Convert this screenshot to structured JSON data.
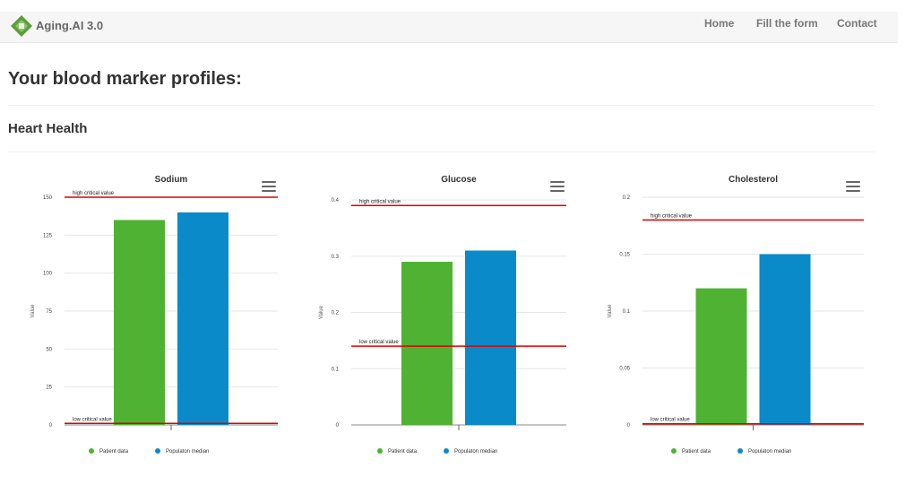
{
  "nav": {
    "brand": "Aging.AI 3.0",
    "logo_text": "AGING.AI",
    "links": [
      "Home",
      "Fill the form",
      "Contact"
    ]
  },
  "page": {
    "title": "Your blood marker profiles:",
    "section_title": "Heart Health"
  },
  "colors": {
    "patient": "#4fb233",
    "population": "#0a8ac8",
    "critical": "#e00000"
  },
  "chart_data": [
    {
      "type": "bar",
      "title": "Sodium",
      "ylabel": "Value",
      "ylim": [
        0,
        150
      ],
      "yticks": [
        0,
        25,
        50,
        75,
        100,
        125,
        150
      ],
      "series": [
        {
          "name": "Patient data",
          "values": [
            135
          ]
        },
        {
          "name": "Populaton median",
          "values": [
            140
          ]
        }
      ],
      "critical_lines": [
        {
          "label": "high critical value",
          "value": 150
        },
        {
          "label": "low critical value",
          "value": 1
        }
      ],
      "legend": "bottom"
    },
    {
      "type": "bar",
      "title": "Glucose",
      "ylabel": "Value",
      "ylim": [
        0,
        0.4
      ],
      "yticks": [
        0,
        0.1,
        0.2,
        0.3,
        0.4
      ],
      "series": [
        {
          "name": "Patient data",
          "values": [
            0.29
          ]
        },
        {
          "name": "Populaton median",
          "values": [
            0.31
          ]
        }
      ],
      "critical_lines": [
        {
          "label": "high critical value",
          "value": 0.39
        },
        {
          "label": "low critical value",
          "value": 0.14
        }
      ],
      "legend": "bottom"
    },
    {
      "type": "bar",
      "title": "Cholesterol",
      "ylabel": "Value",
      "ylim": [
        0,
        0.2
      ],
      "yticks": [
        0,
        0.05,
        0.1,
        0.15,
        0.2
      ],
      "series": [
        {
          "name": "Patient data",
          "values": [
            0.12
          ]
        },
        {
          "name": "Populaton median",
          "values": [
            0.15
          ]
        }
      ],
      "critical_lines": [
        {
          "label": "high critical value",
          "value": 0.18
        },
        {
          "label": "low critical value",
          "value": 0.001
        }
      ],
      "legend": "bottom"
    }
  ]
}
